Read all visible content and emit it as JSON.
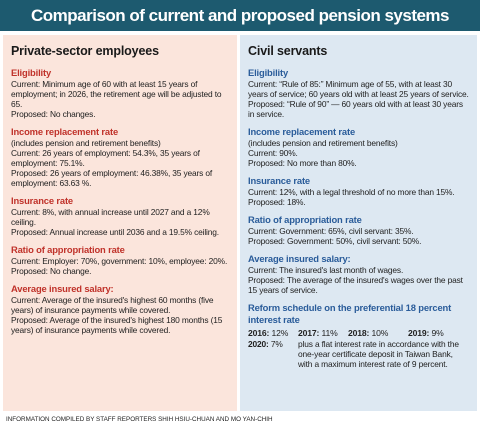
{
  "header": {
    "title": "Comparison of current and proposed pension systems"
  },
  "columns": [
    {
      "heading": "Private-sector employees",
      "sections": [
        {
          "title": "Eligibility",
          "lines": [
            "Current: Minimum age of 60 with at least 15 years of employment; in 2026, the retirement age will be adjusted to 65.",
            "Proposed: No changes."
          ]
        },
        {
          "title": "Income replacement rate",
          "lines": [
            "(includes pension and retirement benefits)",
            "Current: 26 years of employment: 54.3%, 35 years of employment: 75.1%.",
            "Proposed: 26 years of employment: 46.38%, 35 years of employment: 63.63 %."
          ]
        },
        {
          "title": "Insurance rate",
          "lines": [
            "Current: 8%, with annual increase until 2027 and a 12% ceiling.",
            "Proposed: Annual increase until 2036 and a 19.5% ceiling."
          ]
        },
        {
          "title": "Ratio of appropriation rate",
          "lines": [
            "Current: Employer: 70%, government: 10%, employee: 20%.",
            "Proposed: No change."
          ]
        },
        {
          "title": "Average insured salary:",
          "lines": [
            "Current: Average of the insured's highest 60 months (five years) of insurance payments while covered.",
            "Proposed: Average of the insured's highest 180 months (15 years) of insurance payments while covered."
          ]
        }
      ]
    },
    {
      "heading": "Civil servants",
      "sections": [
        {
          "title": "Eligibility",
          "lines": [
            "Current: “Rule of 85:” Minimum age of 55, with at least 30 years of service; 60 years old with at least 25 years of service.",
            "Proposed: “Rule of 90” — 60 years old with at least 30 years in service."
          ]
        },
        {
          "title": "Income replacement rate",
          "lines": [
            "(includes pension and retirement benefits)",
            "Current: 90%.",
            "Proposed: No more than 80%."
          ]
        },
        {
          "title": "Insurance rate",
          "lines": [
            "Current: 12%, with a legal threshold of no more than 15%.",
            "Proposed: 18%."
          ]
        },
        {
          "title": "Ratio of appropriation rate",
          "lines": [
            "Current: Government: 65%, civil servant: 35%.",
            "Proposed: Government: 50%, civil servant: 50%."
          ]
        },
        {
          "title": "Average insured salary:",
          "lines": [
            "Current: The insured's last month of wages.",
            "Proposed: The average of the insured's wages over the past 15 years of service."
          ]
        }
      ],
      "schedule": {
        "title": "Reform schedule on the preferential 18 percent interest rate",
        "items": [
          {
            "year": "2016:",
            "rate": "12%"
          },
          {
            "year": "2017:",
            "rate": "11%"
          },
          {
            "year": "2018:",
            "rate": "10%"
          },
          {
            "year": "2019:",
            "rate": "9%"
          },
          {
            "year": "2020:",
            "rate": "7%"
          }
        ],
        "note": "plus a flat interest rate in accordance with the one-year certificate deposit in Taiwan Bank, with a maximum interest rate of 9 percent."
      }
    }
  ],
  "footer": "INFORMATION COMPILED BY STAFF REPORTERS SHIH HSIU-CHUAN AND MO YAN-CHIH"
}
